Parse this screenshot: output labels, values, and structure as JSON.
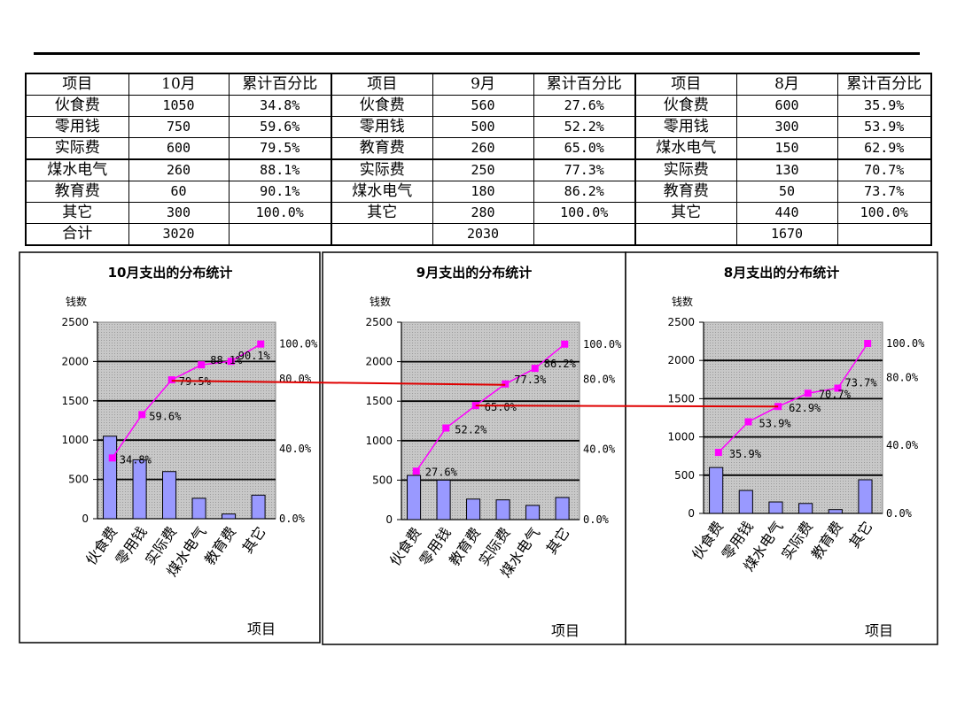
{
  "table": {
    "blocks": [
      {
        "headers": [
          "项目",
          "10月",
          "累计百分比"
        ],
        "rows": [
          [
            "伙食费",
            "1050",
            "34.8%"
          ],
          [
            "零用钱",
            "750",
            "59.6%"
          ],
          [
            "实际费",
            "600",
            "79.5%"
          ],
          [
            "煤水电气",
            "260",
            "88.1%"
          ],
          [
            "教育费",
            "60",
            "90.1%"
          ],
          [
            "其它",
            "300",
            "100.0%"
          ]
        ],
        "total": [
          "合计",
          "3020",
          ""
        ]
      },
      {
        "headers": [
          "项目",
          "9月",
          "累计百分比"
        ],
        "rows": [
          [
            "伙食费",
            "560",
            "27.6%"
          ],
          [
            "零用钱",
            "500",
            "52.2%"
          ],
          [
            "教育费",
            "260",
            "65.0%"
          ],
          [
            "实际费",
            "250",
            "77.3%"
          ],
          [
            "煤水电气",
            "180",
            "86.2%"
          ],
          [
            "其它",
            "280",
            "100.0%"
          ]
        ],
        "total": [
          "",
          "2030",
          ""
        ]
      },
      {
        "headers": [
          "项目",
          "8月",
          "累计百分比"
        ],
        "rows": [
          [
            "伙食费",
            "600",
            "35.9%"
          ],
          [
            "零用钱",
            "300",
            "53.9%"
          ],
          [
            "煤水电气",
            "150",
            "62.9%"
          ],
          [
            "实际费",
            "130",
            "70.7%"
          ],
          [
            "教育费",
            "50",
            "73.7%"
          ],
          [
            "其它",
            "440",
            "100.0%"
          ]
        ],
        "total": [
          "",
          "1670",
          ""
        ]
      }
    ]
  },
  "colors": {
    "bar": "#9999ff",
    "line": "#ff00ff",
    "connector": "#e00000",
    "plot_bg": "#c0c0c0"
  },
  "chart_data": [
    {
      "type": "bar",
      "title": "10月支出的分布统计",
      "ylabel": "钱数",
      "xlabel": "项目",
      "categories": [
        "伙食费",
        "零用钱",
        "实际费",
        "煤水电气",
        "教育费",
        "其它"
      ],
      "values": [
        1050,
        750,
        600,
        260,
        60,
        300
      ],
      "ylim": [
        0,
        2500
      ],
      "yticks": [
        "0",
        "500",
        "1000",
        "1500",
        "2000",
        "2500"
      ],
      "cumulative_pct": [
        34.8,
        59.6,
        79.5,
        88.1,
        90.1,
        100.0
      ],
      "cumulative_labels": [
        "34.8%",
        "59.6%",
        "79.5%",
        "88.1%",
        "90.1%"
      ],
      "y2lim": [
        0,
        112.5
      ],
      "y2ticks": [
        "0.0%",
        "40.0%",
        "80.0%",
        "100.0%"
      ],
      "grid": true
    },
    {
      "type": "bar",
      "title": "9月支出的分布统计",
      "ylabel": "钱数",
      "xlabel": "项目",
      "categories": [
        "伙食费",
        "零用钱",
        "教育费",
        "实际费",
        "煤水电气",
        "其它"
      ],
      "values": [
        560,
        500,
        260,
        250,
        180,
        280
      ],
      "ylim": [
        0,
        2500
      ],
      "yticks": [
        "0",
        "500",
        "1000",
        "1500",
        "2000",
        "2500"
      ],
      "cumulative_pct": [
        27.6,
        52.2,
        65.0,
        77.3,
        86.2,
        100.0
      ],
      "cumulative_labels": [
        "27.6%",
        "52.2%",
        "65.0%",
        "77.3%",
        "86.2%"
      ],
      "y2lim": [
        0,
        112.5
      ],
      "y2ticks": [
        "0.0%",
        "40.0%",
        "80.0%",
        "100.0%"
      ],
      "grid": true
    },
    {
      "type": "bar",
      "title": "8月支出的分布统计",
      "ylabel": "钱数",
      "xlabel": "项目",
      "categories": [
        "伙食费",
        "零用钱",
        "煤水电气",
        "实际费",
        "教育费",
        "其它"
      ],
      "values": [
        600,
        300,
        150,
        130,
        50,
        440
      ],
      "ylim": [
        0,
        2500
      ],
      "yticks": [
        "0",
        "500",
        "1000",
        "1500",
        "2000",
        "2500"
      ],
      "cumulative_pct": [
        35.9,
        53.9,
        62.9,
        70.7,
        73.7,
        100.0
      ],
      "cumulative_labels": [
        "35.9%",
        "53.9%",
        "62.9%",
        "70.7%",
        "73.7%"
      ],
      "y2lim": [
        0,
        112.5
      ],
      "y2ticks": [
        "0.0%",
        "40.0%",
        "80.0%",
        "100.0%"
      ],
      "grid": true
    }
  ]
}
